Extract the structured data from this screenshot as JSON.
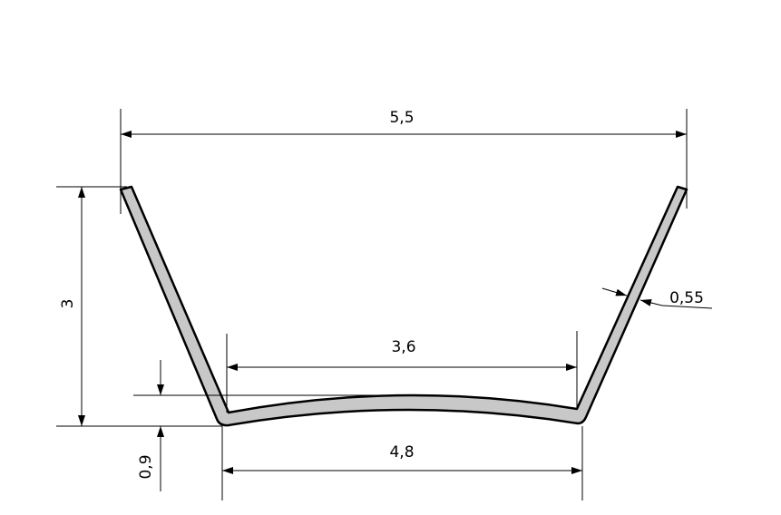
{
  "dimensions": [
    "5,5",
    "3,6",
    "4,8",
    "3",
    "0,9",
    "0,55"
  ]
}
